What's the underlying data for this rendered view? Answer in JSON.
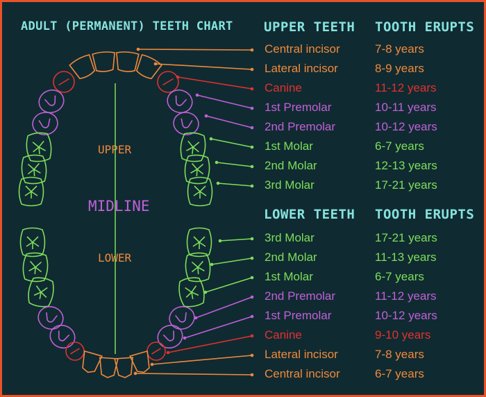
{
  "title": "ADULT (PERMANENT) TEETH CHART",
  "upper_header": "UPPER TEETH",
  "lower_header": "LOWER TEETH",
  "erupts_header": "TOOTH ERUPTS",
  "labels": {
    "upper": "UPPER",
    "midline": "MIDLINE",
    "lower": "LOWER"
  },
  "colors": {
    "incisor": "#f08a3c",
    "canine": "#e0322f",
    "premolar": "#c061d8",
    "molar": "#7ddf5a",
    "header": "#86e3df",
    "background": "#102a31",
    "border": "#e8532a"
  },
  "upper_teeth": [
    {
      "name": "Central incisor",
      "erupts": "7-8 years",
      "kind": "incisor"
    },
    {
      "name": "Lateral incisor",
      "erupts": "8-9 years",
      "kind": "incisor"
    },
    {
      "name": "Canine",
      "erupts": "11-12 years",
      "kind": "canine"
    },
    {
      "name": "1st Premolar",
      "erupts": "10-11 years",
      "kind": "premolar"
    },
    {
      "name": "2nd Premolar",
      "erupts": "10-12 years",
      "kind": "premolar"
    },
    {
      "name": "1st Molar",
      "erupts": "6-7 years",
      "kind": "molar"
    },
    {
      "name": "2nd Molar",
      "erupts": "12-13 years",
      "kind": "molar"
    },
    {
      "name": "3rd Molar",
      "erupts": "17-21 years",
      "kind": "molar"
    }
  ],
  "lower_teeth": [
    {
      "name": "3rd Molar",
      "erupts": "17-21 years",
      "kind": "molar"
    },
    {
      "name": "2nd Molar",
      "erupts": "11-13 years",
      "kind": "molar"
    },
    {
      "name": "1st Molar",
      "erupts": "6-7 years",
      "kind": "molar"
    },
    {
      "name": "2nd Premolar",
      "erupts": "11-12 years",
      "kind": "premolar"
    },
    {
      "name": "1st Premolar",
      "erupts": "10-12 years",
      "kind": "premolar"
    },
    {
      "name": "Canine",
      "erupts": "9-10 years",
      "kind": "canine"
    },
    {
      "name": "Lateral incisor",
      "erupts": "7-8 years",
      "kind": "incisor"
    },
    {
      "name": "Central incisor",
      "erupts": "6-7 years",
      "kind": "incisor"
    }
  ]
}
